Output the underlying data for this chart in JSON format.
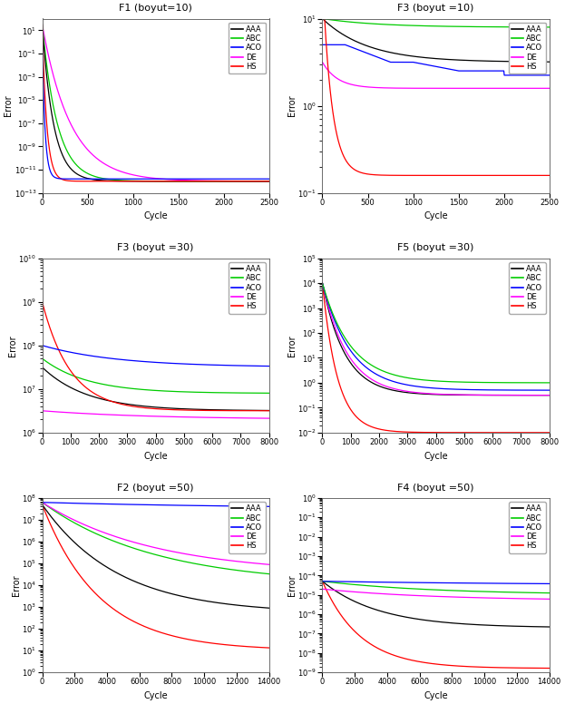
{
  "panels": [
    {
      "title": "F1 (boyut=10)",
      "xlabel": "Cycle",
      "ylabel": "Error",
      "xlim": [
        0,
        2500
      ],
      "ylim": [
        1e-13,
        100.0
      ],
      "xticks": [
        0,
        500,
        1000,
        1500,
        2000,
        2500
      ]
    },
    {
      "title": "F3 (boyut =10)",
      "xlabel": "Cycle",
      "ylabel": "Error",
      "xlim": [
        0,
        2500
      ],
      "ylim": [
        0.1,
        10.0
      ],
      "xticks": [
        0,
        500,
        1000,
        1500,
        2000,
        2500
      ]
    },
    {
      "title": "F3 (boyut =30)",
      "xlabel": "Cycle",
      "ylabel": "Error",
      "xlim": [
        0,
        8000
      ],
      "ylim": [
        1000000.0,
        10000000000.0
      ],
      "xticks": [
        0,
        1000,
        2000,
        3000,
        4000,
        5000,
        6000,
        7000,
        8000
      ]
    },
    {
      "title": "F5 (boyut =30)",
      "xlabel": "Cycle",
      "ylabel": "Error",
      "xlim": [
        0,
        8000
      ],
      "ylim": [
        0.01,
        100000.0
      ],
      "xticks": [
        0,
        1000,
        2000,
        3000,
        4000,
        5000,
        6000,
        7000,
        8000
      ]
    },
    {
      "title": "F2 (boyut =50)",
      "xlabel": "Cycle",
      "ylabel": "Error",
      "xlim": [
        0,
        14000
      ],
      "ylim": [
        1.0,
        100000000.0
      ],
      "xticks": [
        0,
        2000,
        4000,
        6000,
        8000,
        10000,
        12000,
        14000
      ]
    },
    {
      "title": "F4 (boyut =50)",
      "xlabel": "Cycle",
      "ylabel": "Error",
      "xlim": [
        0,
        14000
      ],
      "ylim": [
        1e-09,
        1.0
      ],
      "xticks": [
        0,
        2000,
        4000,
        6000,
        8000,
        10000,
        12000,
        14000
      ]
    }
  ],
  "colors": {
    "AAA": "#000000",
    "ABC": "#00cc00",
    "ACO": "#0000ff",
    "DE": "#ff00ff",
    "HS": "#ff0000"
  }
}
